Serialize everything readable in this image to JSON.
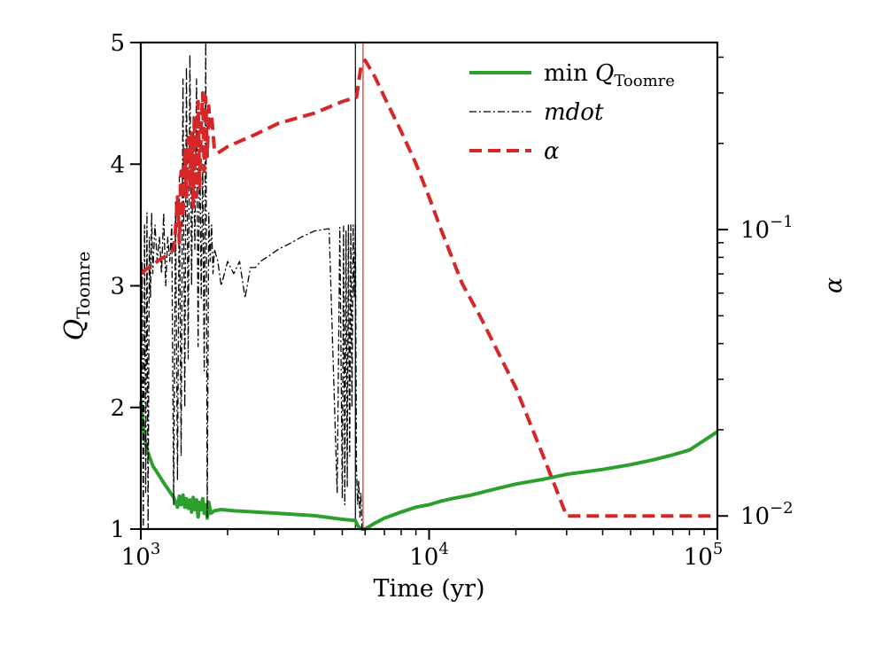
{
  "chart_data": {
    "type": "line",
    "xlabel": "Time (yr)",
    "ylabel_left": "Q_Toomre",
    "ylabel_right": "α",
    "x_scale": "log",
    "xlim": [
      1000,
      100000
    ],
    "x_ticks": [
      {
        "value": 1000,
        "base": "10",
        "exp": "3"
      },
      {
        "value": 10000,
        "base": "10",
        "exp": "4"
      },
      {
        "value": 100000,
        "base": "10",
        "exp": "5"
      }
    ],
    "ylim_left": [
      1,
      5
    ],
    "y_ticks_left": [
      "1",
      "2",
      "3",
      "4",
      "5"
    ],
    "y_scale_right": "log",
    "ylim_right": [
      0.009,
      0.45
    ],
    "y_ticks_right": [
      {
        "value": 0.01,
        "base": "10",
        "exp": "−2"
      },
      {
        "value": 0.1,
        "base": "10",
        "exp": "−1"
      }
    ],
    "legend_position": "top-right",
    "legend": [
      {
        "prefix": "min ",
        "main": "Q",
        "sub": "Toomre",
        "color": "#2ca02c",
        "style": "solid"
      },
      {
        "prefix": "",
        "main": "mdot",
        "sub": "",
        "color": "#000000",
        "style": "dashdot"
      },
      {
        "prefix": "",
        "main": "α",
        "sub": "",
        "color": "#d62728",
        "style": "dashed"
      }
    ],
    "vlines": [
      {
        "x": 5550,
        "color": "#000000"
      },
      {
        "x": 5900,
        "color": "#d62728"
      }
    ],
    "series": [
      {
        "name": "min Q_Toomre",
        "axis": "left",
        "color": "#2ca02c",
        "style": "solid",
        "x": [
          1000,
          1020,
          1050,
          1100,
          1150,
          1200,
          1250,
          1300,
          1340,
          1360,
          1380,
          1400,
          1420,
          1440,
          1460,
          1480,
          1500,
          1520,
          1540,
          1560,
          1580,
          1600,
          1620,
          1640,
          1660,
          1680,
          1700,
          1720,
          1750,
          1800,
          1900,
          2100,
          2500,
          3000,
          4000,
          5000,
          5550,
          5650,
          5750,
          5850,
          6000,
          6500,
          7000,
          8000,
          9000,
          10000,
          11000,
          12000,
          14000,
          17000,
          20000,
          25000,
          30000,
          40000,
          50000,
          60000,
          70000,
          80000,
          100000
        ],
        "y": [
          2.05,
          1.82,
          1.65,
          1.52,
          1.45,
          1.38,
          1.32,
          1.26,
          1.18,
          1.27,
          1.2,
          1.28,
          1.18,
          1.25,
          1.17,
          1.24,
          1.14,
          1.26,
          1.16,
          1.24,
          1.1,
          1.22,
          1.16,
          1.25,
          1.13,
          1.2,
          1.09,
          1.22,
          1.13,
          1.15,
          1.16,
          1.15,
          1.14,
          1.13,
          1.11,
          1.08,
          1.07,
          1.03,
          1.01,
          1.0,
          1.0,
          1.05,
          1.09,
          1.14,
          1.18,
          1.2,
          1.23,
          1.25,
          1.28,
          1.33,
          1.37,
          1.41,
          1.45,
          1.49,
          1.53,
          1.57,
          1.61,
          1.65,
          1.8
        ]
      },
      {
        "name": "mdot",
        "axis": "left",
        "color": "#000000",
        "style": "dashdot",
        "x": [
          1000,
          1010,
          1020,
          1030,
          1040,
          1050,
          1060,
          1070,
          1080,
          1090,
          1100,
          1120,
          1140,
          1160,
          1180,
          1200,
          1220,
          1240,
          1260,
          1280,
          1300,
          1320,
          1340,
          1360,
          1380,
          1400,
          1420,
          1440,
          1460,
          1480,
          1500,
          1520,
          1540,
          1560,
          1580,
          1600,
          1620,
          1640,
          1660,
          1680,
          1700,
          1720,
          1740,
          1760,
          1780,
          1800,
          1850,
          1900,
          2000,
          2100,
          2200,
          2300,
          2400,
          2500,
          2600,
          2800,
          3000,
          3300,
          3600,
          4000,
          4500,
          4800,
          4900,
          5000,
          5050,
          5100,
          5150,
          5200,
          5250,
          5300,
          5350,
          5400,
          5450,
          5500,
          5550,
          5600,
          5650,
          5700,
          5750,
          5800,
          5850
        ],
        "y": [
          1.0,
          3.2,
          1.0,
          3.5,
          1.3,
          3.6,
          1.0,
          3.4,
          2.9,
          3.6,
          3.1,
          3.5,
          3.2,
          3.4,
          3.1,
          3.6,
          3.0,
          3.4,
          3.2,
          3.5,
          1.2,
          3.7,
          1.4,
          3.9,
          1.6,
          4.7,
          2.0,
          4.8,
          2.4,
          4.9,
          3.0,
          4.4,
          3.3,
          4.7,
          2.5,
          4.3,
          2.9,
          4.0,
          2.3,
          5.0,
          1.1,
          3.6,
          3.2,
          3.5,
          3.1,
          3.3,
          3.2,
          3.0,
          3.2,
          3.1,
          3.2,
          2.9,
          3.15,
          3.15,
          3.2,
          3.25,
          3.3,
          3.35,
          3.4,
          3.45,
          3.47,
          1.3,
          3.48,
          1.25,
          3.49,
          1.2,
          3.45,
          1.35,
          3.5,
          1.6,
          3.5,
          2.0,
          3.5,
          2.9,
          3.5,
          1.5,
          1.2,
          1.4,
          1.1,
          1.3,
          1.0
        ]
      },
      {
        "name": "α",
        "axis": "right",
        "color": "#d62728",
        "style": "dashed",
        "x": [
          1000,
          1050,
          1100,
          1150,
          1200,
          1250,
          1300,
          1320,
          1340,
          1360,
          1380,
          1400,
          1420,
          1440,
          1460,
          1480,
          1500,
          1520,
          1540,
          1560,
          1580,
          1600,
          1620,
          1640,
          1660,
          1680,
          1700,
          1720,
          1740,
          1760,
          1800,
          1850,
          2000,
          2500,
          3000,
          4000,
          5000,
          5600,
          5800,
          6000,
          6500,
          7000,
          8000,
          9000,
          10000,
          11000,
          12000,
          13000,
          15000,
          20000,
          25000,
          30000,
          40000,
          60000,
          100000
        ],
        "y": [
          0.07,
          0.073,
          0.075,
          0.078,
          0.08,
          0.082,
          0.085,
          0.1,
          0.13,
          0.09,
          0.16,
          0.11,
          0.19,
          0.13,
          0.21,
          0.14,
          0.22,
          0.12,
          0.25,
          0.13,
          0.28,
          0.14,
          0.23,
          0.3,
          0.16,
          0.29,
          0.18,
          0.27,
          0.23,
          0.25,
          0.19,
          0.185,
          0.195,
          0.215,
          0.235,
          0.255,
          0.28,
          0.29,
          0.37,
          0.39,
          0.34,
          0.29,
          0.22,
          0.17,
          0.13,
          0.1,
          0.08,
          0.065,
          0.05,
          0.028,
          0.016,
          0.01,
          0.01,
          0.01,
          0.01
        ]
      }
    ]
  }
}
